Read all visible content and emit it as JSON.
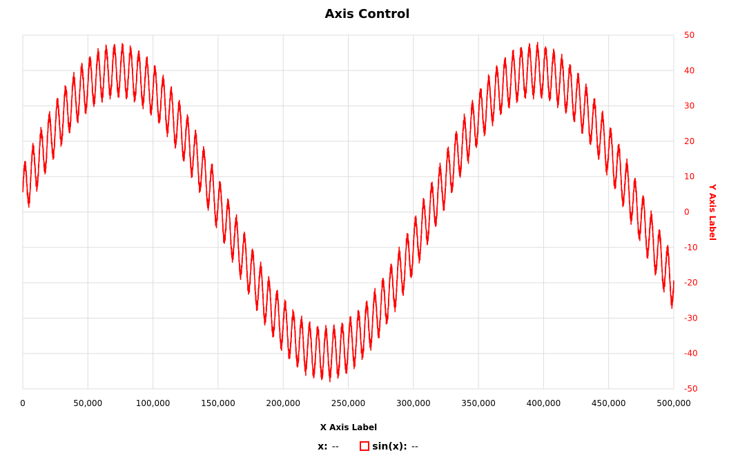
{
  "chart_data": {
    "type": "line",
    "title": "Axis Control",
    "xlabel": "X Axis Label",
    "ylabel": "Y Axis Label",
    "xlim": [
      0,
      500000
    ],
    "ylim": [
      -50,
      50
    ],
    "x_ticks": [
      0,
      50000,
      100000,
      150000,
      200000,
      250000,
      300000,
      350000,
      400000,
      450000,
      500000
    ],
    "x_tick_labels": [
      "0",
      "50,000",
      "100,000",
      "150,000",
      "200,000",
      "250,000",
      "300,000",
      "350,000",
      "400,000",
      "450,000",
      "500,000"
    ],
    "y_ticks": [
      50,
      40,
      30,
      20,
      10,
      0,
      -10,
      -20,
      -30,
      -40,
      -50
    ],
    "y_tick_labels": [
      "50",
      "40",
      "30",
      "20",
      "10",
      "0",
      "-10",
      "-20",
      "-30",
      "-40",
      "-50"
    ],
    "y_axis_side": "right",
    "grid": true,
    "legend_position": "bottom",
    "series": [
      {
        "name": "sin(x)",
        "color": "#ff0000",
        "x_start": 0,
        "x_end": 500000,
        "y_at_start": 2,
        "y_max": 46,
        "y_max_at_x": 80000,
        "y_min": -47,
        "y_min_at_x": 231000,
        "y_at_end": -22,
        "sample_points": [
          {
            "x": 0,
            "y": 2
          },
          {
            "x": 25000,
            "y": 18
          },
          {
            "x": 50000,
            "y": 32
          },
          {
            "x": 75000,
            "y": 40
          },
          {
            "x": 100000,
            "y": 36
          },
          {
            "x": 125000,
            "y": 25
          },
          {
            "x": 150000,
            "y": 8
          },
          {
            "x": 175000,
            "y": -15
          },
          {
            "x": 200000,
            "y": -32
          },
          {
            "x": 225000,
            "y": -40
          },
          {
            "x": 250000,
            "y": -38
          },
          {
            "x": 275000,
            "y": -27
          },
          {
            "x": 300000,
            "y": -10
          },
          {
            "x": 325000,
            "y": 10
          },
          {
            "x": 350000,
            "y": 27
          },
          {
            "x": 375000,
            "y": 38
          },
          {
            "x": 400000,
            "y": 40
          },
          {
            "x": 425000,
            "y": 33
          },
          {
            "x": 450000,
            "y": 17
          },
          {
            "x": 475000,
            "y": -3
          },
          {
            "x": 500000,
            "y": -22
          }
        ]
      }
    ]
  },
  "legend": {
    "x_key": "x:",
    "x_value": "--",
    "series_key": "sin(x):",
    "series_value": "--"
  },
  "colors": {
    "series": "#ff0000",
    "y_axis_text": "#ff0000",
    "grid": "#dddddd"
  }
}
